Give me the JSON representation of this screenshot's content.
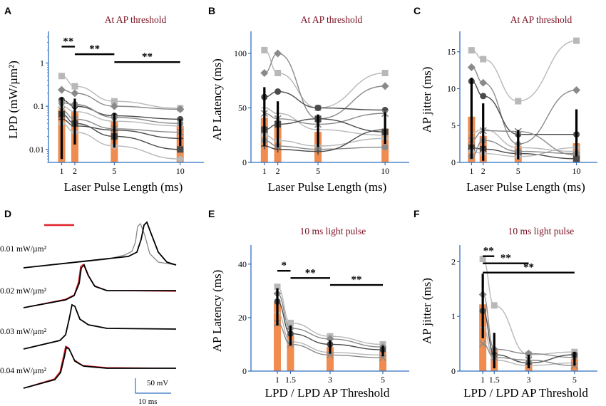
{
  "colors": {
    "bar": "#f08c50",
    "axis": "#2f6fc0",
    "title": "#7a1020",
    "ind_light": "#b8b8b8",
    "ind_mid": "#8a8a8a",
    "ind_dark": "#4a4a4a",
    "trace_red": "#e0202a",
    "trace": "#000000"
  },
  "chart_data": [
    {
      "panel": "A",
      "type": "bar",
      "title": "At AP threshold",
      "xlabel": "Laser Pulse Length (ms)",
      "ylabel": "LPD (mW/µm²)",
      "yscale": "log",
      "ylim": [
        0.005,
        4
      ],
      "xlim": [
        0,
        11.8
      ],
      "x": [
        1,
        2,
        5,
        10
      ],
      "xtick_labels": [
        "1",
        "2",
        "5",
        "10"
      ],
      "ytick_labels": [
        "0.01",
        "0.1",
        "1"
      ],
      "yticks": [
        0.01,
        0.1,
        1
      ],
      "mean": [
        0.085,
        0.075,
        0.045,
        0.035
      ],
      "err": [
        [
          0.006,
          0.16
        ],
        [
          0.013,
          0.15
        ],
        [
          0.011,
          0.07
        ],
        [
          0.012,
          0.05
        ]
      ],
      "individuals": [
        [
          0.5,
          0.29,
          0.13,
          0.09
        ],
        [
          0.24,
          0.2,
          0.1,
          0.085
        ],
        [
          0.14,
          0.1,
          0.06,
          0.05
        ],
        [
          0.1,
          0.075,
          0.045,
          0.035
        ],
        [
          0.08,
          0.05,
          0.03,
          0.025
        ],
        [
          0.065,
          0.04,
          0.02,
          0.01
        ],
        [
          0.04,
          0.025,
          0.012,
          0.006
        ],
        [
          0.12,
          0.11,
          0.055,
          0.04
        ],
        [
          0.05,
          0.035,
          0.028,
          0.018
        ]
      ],
      "sig": [
        {
          "from": 1,
          "to": 2,
          "level": 2.4,
          "label": "**"
        },
        {
          "from": 2,
          "to": 5,
          "level": 1.6,
          "label": "**"
        },
        {
          "from": 5,
          "to": 10,
          "level": 1.05,
          "label": "**"
        }
      ]
    },
    {
      "panel": "B",
      "type": "bar",
      "title": "At AP threshold",
      "xlabel": "Laser Pulse Length (ms)",
      "ylabel": "AP Latency (ms)",
      "yscale": "linear",
      "ylim": [
        0,
        115
      ],
      "xlim": [
        0,
        11.8
      ],
      "x": [
        1,
        2,
        5,
        10
      ],
      "xtick_labels": [
        "1",
        "2",
        "5",
        "10"
      ],
      "yticks": [
        0,
        50,
        100
      ],
      "ytick_labels": [
        "0",
        "50",
        "100"
      ],
      "mean": [
        41,
        35,
        28,
        31
      ],
      "err": [
        [
          15,
          69
        ],
        [
          14,
          56
        ],
        [
          14,
          44
        ],
        [
          17,
          46
        ]
      ],
      "individuals": [
        [
          103,
          82,
          50,
          82
        ],
        [
          82,
          100,
          40,
          70
        ],
        [
          60,
          65,
          50,
          48
        ],
        [
          50,
          45,
          30,
          25
        ],
        [
          45,
          40,
          35,
          45
        ],
        [
          30,
          35,
          40,
          28
        ],
        [
          25,
          20,
          15,
          22
        ],
        [
          20,
          15,
          12,
          14
        ],
        [
          15,
          12,
          10,
          30
        ]
      ],
      "sig": []
    },
    {
      "panel": "C",
      "type": "bar",
      "title": "At AP threshold",
      "xlabel": "Laser Pulse Length (ms)",
      "ylabel": "AP jitter (ms)",
      "yscale": "linear",
      "ylim": [
        0,
        17
      ],
      "xlim": [
        0,
        11.8
      ],
      "x": [
        1,
        2,
        5,
        10
      ],
      "xtick_labels": [
        "1",
        "2",
        "5",
        "10"
      ],
      "yticks": [
        0,
        5,
        10,
        15
      ],
      "ytick_labels": [
        "0",
        "5",
        "10",
        "15"
      ],
      "mean": [
        6.2,
        3.6,
        2.2,
        2.6
      ],
      "err": [
        [
          0.5,
          11.5
        ],
        [
          0.2,
          8.0
        ],
        [
          0.4,
          4.4
        ],
        [
          0.8,
          7.2
        ]
      ],
      "individuals": [
        [
          15.2,
          14.0,
          8.3,
          16.5
        ],
        [
          12.9,
          10.8,
          2.5,
          9.8
        ],
        [
          11.0,
          9.0,
          3.8,
          3.8
        ],
        [
          4.0,
          4.5,
          2.0,
          1.5
        ],
        [
          3.0,
          4.3,
          4.2,
          1.0
        ],
        [
          2.0,
          1.8,
          1.2,
          0.5
        ],
        [
          1.5,
          1.2,
          0.8,
          2.0
        ],
        [
          0.8,
          3.0,
          1.5,
          1.2
        ]
      ],
      "sig": []
    },
    {
      "panel": "E",
      "type": "bar",
      "title": "10 ms light pulse",
      "xlabel": "LPD / LPD AP Threshold",
      "ylabel": "AP Latency (ms)",
      "yscale": "linear",
      "ylim": [
        0,
        45
      ],
      "xlim": [
        0,
        6
      ],
      "x": [
        1,
        1.5,
        3,
        5
      ],
      "xtick_labels": [
        "1",
        "1.5",
        "3",
        "5"
      ],
      "yticks": [
        0,
        20,
        40
      ],
      "ytick_labels": [
        "0",
        "20",
        "40"
      ],
      "mean": [
        25.5,
        13.5,
        9,
        7.5
      ],
      "err": [
        [
          17,
          31
        ],
        [
          9.5,
          17
        ],
        [
          6.5,
          11.5
        ],
        [
          5.5,
          9.5
        ]
      ],
      "individuals": [
        [
          31.5,
          18,
          13,
          10
        ],
        [
          29,
          16,
          12,
          9
        ],
        [
          26,
          14,
          10,
          8
        ],
        [
          22,
          11,
          7,
          6
        ],
        [
          18,
          10,
          6,
          5
        ]
      ],
      "sig": [
        {
          "from": 1,
          "to": 1.5,
          "level": 37.5,
          "label": "*"
        },
        {
          "from": 1.5,
          "to": 3,
          "level": 34.8,
          "label": "**"
        },
        {
          "from": 3,
          "to": 5,
          "level": 32.2,
          "label": "**"
        }
      ]
    },
    {
      "panel": "F",
      "type": "bar",
      "title": "10 ms light pulse",
      "xlabel": "LPD / LPD AP Threshold",
      "ylabel": "AP jitter (ms)",
      "yscale": "linear",
      "ylim": [
        0,
        2.2
      ],
      "xlim": [
        0,
        6
      ],
      "x": [
        1,
        1.5,
        3,
        5
      ],
      "xtick_labels": [
        "1",
        "1.5",
        "3",
        "5"
      ],
      "yticks": [
        0,
        1,
        2
      ],
      "ytick_labels": [
        "0",
        "1",
        "2"
      ],
      "mean": [
        1.22,
        0.38,
        0.16,
        0.22
      ],
      "err": [
        [
          0.6,
          1.78
        ],
        [
          0.05,
          0.7
        ],
        [
          0.05,
          0.3
        ],
        [
          0.1,
          0.35
        ]
      ],
      "individuals": [
        [
          2.05,
          1.2,
          0.3,
          0.35
        ],
        [
          1.4,
          0.4,
          0.32,
          0.25
        ],
        [
          1.1,
          0.3,
          0.15,
          0.3
        ],
        [
          0.8,
          0.2,
          0.1,
          0.15
        ],
        [
          0.5,
          0.25,
          0.2,
          0.1
        ]
      ],
      "sig": [
        {
          "from": 1,
          "to": 1.5,
          "level": 2.1,
          "label": "**"
        },
        {
          "from": 1,
          "to": 3,
          "level": 1.97,
          "label": "**"
        },
        {
          "from": 1,
          "to": 5,
          "level": 1.8,
          "label": "**"
        }
      ]
    }
  ],
  "panel_letters": {
    "a": "A",
    "b": "B",
    "c": "C",
    "d": "D",
    "e": "E",
    "f": "F"
  },
  "panel_d": {
    "traces": [
      {
        "label": "0.01 mW/µm²",
        "onset_ms": 15.5
      },
      {
        "label": "0.02 mW/µm²",
        "onset_ms": 7.5
      },
      {
        "label": "0.03 mW/µm²",
        "onset_ms": 6.5
      },
      {
        "label": "0.04 mW/µm²",
        "onset_ms": 5.5
      }
    ],
    "scale_v": "50 mV",
    "scale_t": "10 ms"
  }
}
